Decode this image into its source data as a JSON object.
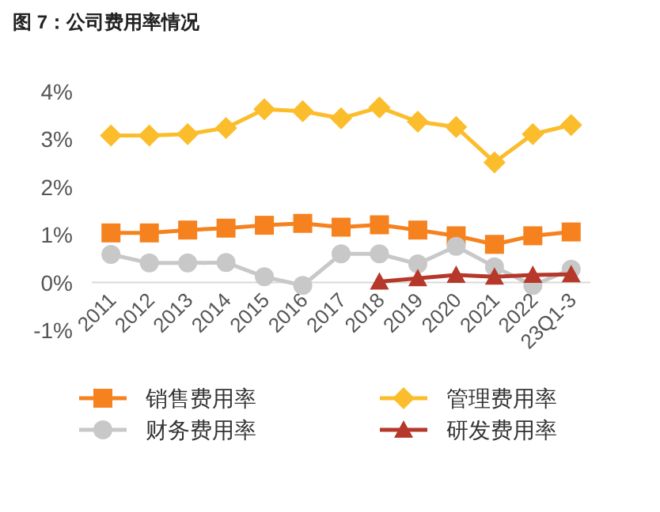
{
  "chart_data": {
    "type": "line",
    "title": "图 7：公司费用率情况",
    "categories": [
      "2011",
      "2012",
      "2013",
      "2014",
      "2015",
      "2016",
      "2017",
      "2018",
      "2019",
      "2020",
      "2021",
      "2022",
      "23Q1-3"
    ],
    "series": [
      {
        "name": "销售费用率",
        "color": "#f5821f",
        "marker": "square",
        "values": [
          1.04,
          1.04,
          1.1,
          1.14,
          1.2,
          1.24,
          1.16,
          1.21,
          1.1,
          0.98,
          0.8,
          0.98,
          1.06
        ]
      },
      {
        "name": "管理费用率",
        "color": "#fbbd2c",
        "marker": "diamond",
        "values": [
          3.08,
          3.08,
          3.11,
          3.24,
          3.63,
          3.59,
          3.44,
          3.67,
          3.37,
          3.26,
          2.52,
          3.11,
          3.3
        ]
      },
      {
        "name": "财务费用率",
        "color": "#c8c8c8",
        "marker": "circle",
        "values": [
          0.59,
          0.41,
          0.41,
          0.42,
          0.12,
          -0.06,
          0.6,
          0.6,
          0.39,
          0.76,
          0.33,
          -0.06,
          0.28
        ]
      },
      {
        "name": "研发费用率",
        "color": "#b5382a",
        "marker": "triangle",
        "values": [
          null,
          null,
          null,
          null,
          null,
          null,
          null,
          0.02,
          0.09,
          0.16,
          0.12,
          0.16,
          0.17
        ]
      }
    ],
    "ylim": [
      -1,
      4
    ],
    "yticks": [
      {
        "value": -1,
        "label": "-1%"
      },
      {
        "value": 0,
        "label": "0%"
      },
      {
        "value": 1,
        "label": "1%"
      },
      {
        "value": 2,
        "label": "2%"
      },
      {
        "value": 3,
        "label": "3%"
      },
      {
        "value": 4,
        "label": "4%"
      }
    ],
    "grid": false,
    "legend": "bottom"
  }
}
